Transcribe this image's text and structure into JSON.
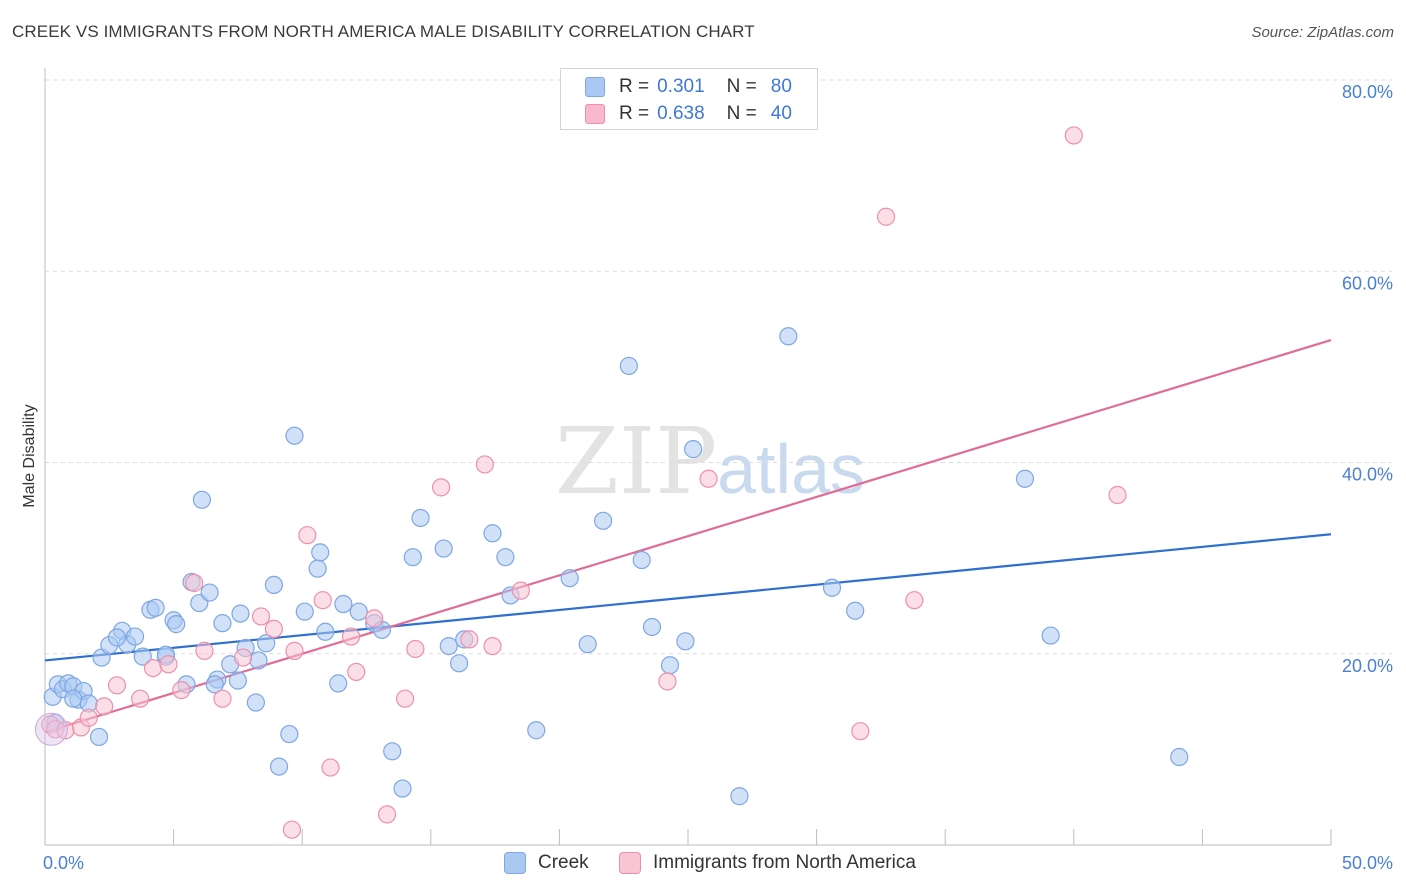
{
  "title": "CREEK VS IMMIGRANTS FROM NORTH AMERICA MALE DISABILITY CORRELATION CHART",
  "source": "Source: ZipAtlas.com",
  "watermark": {
    "zip": "ZIP",
    "atlas": "atlas"
  },
  "legend": {
    "rows": [
      {
        "r_label": "R = ",
        "r_value": "0.301",
        "n_label": "N = ",
        "n_value": "80",
        "color": "#a9c8f2",
        "border": "#7ea7e3"
      },
      {
        "r_label": "R = ",
        "r_value": "0.638",
        "n_label": "N = ",
        "n_value": "40",
        "color": "#f7b9cb",
        "border": "#ef8fac"
      }
    ]
  },
  "bottom_legend": [
    {
      "label": "Creek",
      "color": "#a9c8f2",
      "border": "#7ea7e3"
    },
    {
      "label": "Immigrants from North America",
      "color": "#f7c5d3",
      "border": "#ef8fac"
    }
  ],
  "chart_data": {
    "type": "scatter",
    "xlabel": "",
    "ylabel": "Male Disability",
    "xlim": [
      0,
      50
    ],
    "ylim": [
      0,
      80
    ],
    "x_tick_labels": [
      "0.0%",
      "50.0%"
    ],
    "y_tick_labels": [
      "20.0%",
      "40.0%",
      "60.0%",
      "80.0%"
    ],
    "y_ticks": [
      20,
      40,
      60,
      80
    ],
    "grid": true,
    "legend_position": "top-center",
    "series": [
      {
        "name": "Creek",
        "color": "#7ea7e3",
        "fill": "#a9c8f2",
        "trend": {
          "x": [
            0,
            50
          ],
          "y": [
            19.3,
            32.5
          ],
          "color": "#2e6fd0"
        },
        "points": [
          [
            0.3,
            15.5
          ],
          [
            0.5,
            16.8
          ],
          [
            0.7,
            16.3
          ],
          [
            0.9,
            16.9
          ],
          [
            1.1,
            16.6
          ],
          [
            1.3,
            15.2
          ],
          [
            1.5,
            16.1
          ],
          [
            2.2,
            19.6
          ],
          [
            2.5,
            20.9
          ],
          [
            2.1,
            11.3
          ],
          [
            3.0,
            22.4
          ],
          [
            3.2,
            21.0
          ],
          [
            3.5,
            21.8
          ],
          [
            4.1,
            24.6
          ],
          [
            4.3,
            24.8
          ],
          [
            4.7,
            19.7
          ],
          [
            5.0,
            23.5
          ],
          [
            5.1,
            23.1
          ],
          [
            5.7,
            27.5
          ],
          [
            6.0,
            25.3
          ],
          [
            6.1,
            36.1
          ],
          [
            6.4,
            26.4
          ],
          [
            6.7,
            17.3
          ],
          [
            6.9,
            23.2
          ],
          [
            7.2,
            18.9
          ],
          [
            7.6,
            24.2
          ],
          [
            7.8,
            20.6
          ],
          [
            8.2,
            14.9
          ],
          [
            8.3,
            19.3
          ],
          [
            8.6,
            21.1
          ],
          [
            8.9,
            27.2
          ],
          [
            9.1,
            8.2
          ],
          [
            9.5,
            11.6
          ],
          [
            9.7,
            42.8
          ],
          [
            10.1,
            24.4
          ],
          [
            10.6,
            28.9
          ],
          [
            10.7,
            30.6
          ],
          [
            10.9,
            22.3
          ],
          [
            11.4,
            16.9
          ],
          [
            11.6,
            25.2
          ],
          [
            12.2,
            24.4
          ],
          [
            12.8,
            23.2
          ],
          [
            13.1,
            22.5
          ],
          [
            13.5,
            9.8
          ],
          [
            13.9,
            5.9
          ],
          [
            14.3,
            30.1
          ],
          [
            14.6,
            34.2
          ],
          [
            15.5,
            31.0
          ],
          [
            15.7,
            20.8
          ],
          [
            16.1,
            19.0
          ],
          [
            16.3,
            21.5
          ],
          [
            17.4,
            32.6
          ],
          [
            17.9,
            30.1
          ],
          [
            18.1,
            26.1
          ],
          [
            19.1,
            12.0
          ],
          [
            20.4,
            27.9
          ],
          [
            21.1,
            21.0
          ],
          [
            21.7,
            33.9
          ],
          [
            22.7,
            50.1
          ],
          [
            23.2,
            29.8
          ],
          [
            23.6,
            22.8
          ],
          [
            24.3,
            18.8
          ],
          [
            24.9,
            21.3
          ],
          [
            25.2,
            41.4
          ],
          [
            27.0,
            5.1
          ],
          [
            28.9,
            53.2
          ],
          [
            30.6,
            26.9
          ],
          [
            31.5,
            24.5
          ],
          [
            38.1,
            38.3
          ],
          [
            39.1,
            21.9
          ],
          [
            44.1,
            9.2
          ],
          [
            2.8,
            21.7
          ],
          [
            3.8,
            19.7
          ],
          [
            4.7,
            19.9
          ],
          [
            0.4,
            12.8
          ],
          [
            1.1,
            15.3
          ],
          [
            6.6,
            16.8
          ],
          [
            7.5,
            17.2
          ],
          [
            1.7,
            14.8
          ],
          [
            5.5,
            16.8
          ]
        ]
      },
      {
        "name": "Immigrants from North America",
        "color": "#ef8fac",
        "fill": "#f7c5d3",
        "trend": {
          "x": [
            0,
            50
          ],
          "y": [
            11.8,
            52.8
          ],
          "color": "#e06c98"
        },
        "points": [
          [
            0.2,
            12.6
          ],
          [
            0.4,
            12.1
          ],
          [
            0.8,
            12.0
          ],
          [
            1.4,
            12.3
          ],
          [
            1.7,
            13.3
          ],
          [
            2.3,
            14.5
          ],
          [
            2.8,
            16.7
          ],
          [
            3.7,
            15.3
          ],
          [
            4.2,
            18.5
          ],
          [
            4.8,
            18.9
          ],
          [
            5.3,
            16.2
          ],
          [
            5.8,
            27.4
          ],
          [
            6.2,
            20.3
          ],
          [
            6.9,
            15.3
          ],
          [
            7.7,
            19.6
          ],
          [
            8.4,
            23.9
          ],
          [
            8.9,
            22.6
          ],
          [
            9.6,
            1.6
          ],
          [
            9.7,
            20.3
          ],
          [
            10.2,
            32.4
          ],
          [
            10.8,
            25.6
          ],
          [
            11.1,
            8.1
          ],
          [
            11.9,
            21.8
          ],
          [
            12.1,
            18.1
          ],
          [
            12.8,
            23.7
          ],
          [
            13.3,
            3.2
          ],
          [
            14.0,
            15.3
          ],
          [
            14.4,
            20.5
          ],
          [
            15.4,
            37.4
          ],
          [
            16.5,
            21.5
          ],
          [
            17.1,
            39.8
          ],
          [
            17.4,
            20.8
          ],
          [
            18.5,
            26.6
          ],
          [
            24.2,
            17.1
          ],
          [
            25.8,
            38.3
          ],
          [
            31.7,
            11.9
          ],
          [
            32.7,
            65.7
          ],
          [
            33.8,
            25.6
          ],
          [
            40.0,
            74.2
          ],
          [
            41.7,
            36.6
          ]
        ]
      }
    ]
  }
}
